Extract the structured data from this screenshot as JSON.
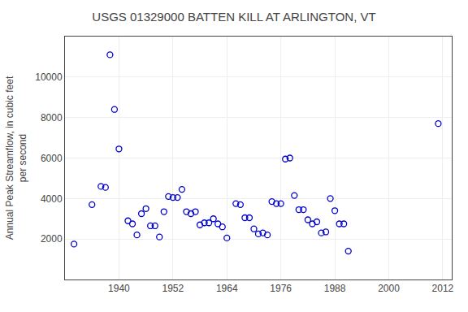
{
  "chart_data": {
    "type": "scatter",
    "title": "USGS 01329000 BATTEN KILL AT ARLINGTON, VT",
    "ylabel": "Annual Peak Streamflow, in cubic feet\nper second",
    "x": [
      1930,
      1934,
      1936,
      1937,
      1938,
      1939,
      1940,
      1942,
      1943,
      1944,
      1945,
      1946,
      1947,
      1948,
      1949,
      1950,
      1951,
      1952,
      1953,
      1954,
      1955,
      1956,
      1957,
      1958,
      1959,
      1960,
      1961,
      1962,
      1963,
      1964,
      1966,
      1967,
      1968,
      1969,
      1970,
      1971,
      1972,
      1973,
      1974,
      1975,
      1976,
      1977,
      1978,
      1979,
      1980,
      1981,
      1982,
      1983,
      1984,
      1985,
      1986,
      1987,
      1988,
      1989,
      1990,
      1991,
      2011
    ],
    "values": [
      1750,
      3700,
      4600,
      4550,
      11100,
      8400,
      6450,
      2900,
      2750,
      2200,
      3250,
      3500,
      2650,
      2650,
      2100,
      3350,
      4100,
      4050,
      4050,
      4450,
      3350,
      3250,
      3350,
      2700,
      2800,
      2800,
      3000,
      2750,
      2600,
      2050,
      3750,
      3700,
      3050,
      3050,
      2500,
      2250,
      2300,
      2200,
      3850,
      3750,
      3750,
      5950,
      6000,
      4150,
      3450,
      3450,
      2950,
      2750,
      2850,
      2300,
      2350,
      4000,
      3400,
      2750,
      2750,
      1400,
      7700
    ],
    "color": "#0000cc",
    "marker": "open circle",
    "xlim": [
      1928,
      2014
    ],
    "ylim": [
      0,
      12000
    ],
    "xticks": [
      1940,
      1952,
      1964,
      1976,
      1988,
      2000,
      2012
    ],
    "yticks": [
      2000,
      4000,
      6000,
      8000,
      10000
    ],
    "grid": true
  }
}
